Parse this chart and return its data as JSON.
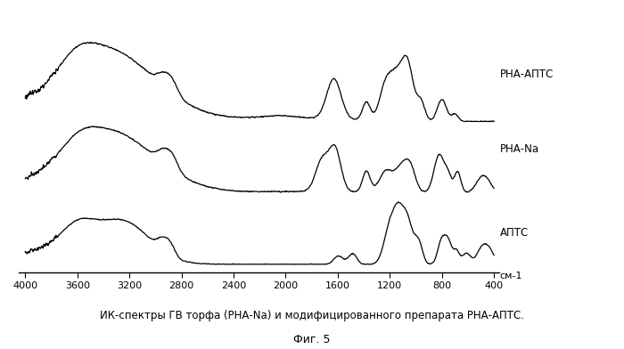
{
  "xlabel_ticks": [
    4000,
    3600,
    3200,
    2800,
    2400,
    2000,
    1600,
    1200,
    800,
    400
  ],
  "xlabel_unit": "см-1",
  "caption_line1": "ИК-спектры ГВ торфа (РНА-Na) и модифицированного препарата РНА-АПТС.",
  "caption_line2": "Фиг. 5",
  "labels": [
    "РНА-АПТС",
    "РНА-Na",
    "АПТС"
  ],
  "background_color": "#ffffff",
  "line_color": "#000000",
  "offsets": [
    1.8,
    0.9,
    0.0
  ]
}
